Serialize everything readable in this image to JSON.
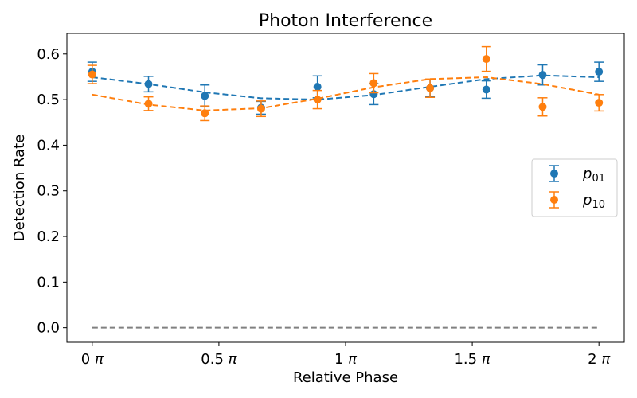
{
  "chart_data": {
    "type": "scatter",
    "title": "Photon Interference",
    "xlabel": "Relative Phase",
    "ylabel": "Detection Rate",
    "xlim": [
      -0.1,
      2.1
    ],
    "ylim": [
      -0.032,
      0.645
    ],
    "x_unit_symbol": "π",
    "xticks": [
      0,
      0.5,
      1,
      1.5,
      2
    ],
    "xtick_labels": [
      "0",
      "0.5",
      "1",
      "1.5",
      "2"
    ],
    "yticks": [
      0.0,
      0.1,
      0.2,
      0.3,
      0.4,
      0.5,
      0.6
    ],
    "ytick_labels": [
      "0.0",
      "0.1",
      "0.2",
      "0.3",
      "0.4",
      "0.5",
      "0.6"
    ],
    "grid": false,
    "legend_position": "right",
    "x": [
      0,
      0.2222,
      0.4444,
      0.6667,
      0.8889,
      1.1111,
      1.3333,
      1.5556,
      1.7778,
      2.0
    ],
    "series": [
      {
        "name": "p",
        "name_sub": "01",
        "color": "#1f77b4",
        "values": [
          0.561,
          0.534,
          0.508,
          0.482,
          0.528,
          0.512,
          0.525,
          0.522,
          0.554,
          0.561
        ],
        "errors": [
          0.021,
          0.017,
          0.024,
          0.014,
          0.024,
          0.023,
          0.019,
          0.019,
          0.022,
          0.021
        ],
        "fit": [
          0.549,
          0.534,
          0.516,
          0.503,
          0.5,
          0.51,
          0.528,
          0.545,
          0.553,
          0.549
        ]
      },
      {
        "name": "p",
        "name_sub": "10",
        "color": "#ff7f0e",
        "values": [
          0.555,
          0.491,
          0.47,
          0.48,
          0.5,
          0.536,
          0.525,
          0.589,
          0.484,
          0.493
        ],
        "errors": [
          0.02,
          0.015,
          0.016,
          0.017,
          0.02,
          0.021,
          0.02,
          0.027,
          0.02,
          0.018
        ],
        "fit": [
          0.511,
          0.489,
          0.476,
          0.481,
          0.502,
          0.527,
          0.545,
          0.549,
          0.534,
          0.511
        ]
      }
    ],
    "baseline": {
      "color": "#808080",
      "values": [
        0,
        0,
        0,
        0,
        0,
        0,
        0,
        0,
        0,
        0
      ]
    }
  }
}
